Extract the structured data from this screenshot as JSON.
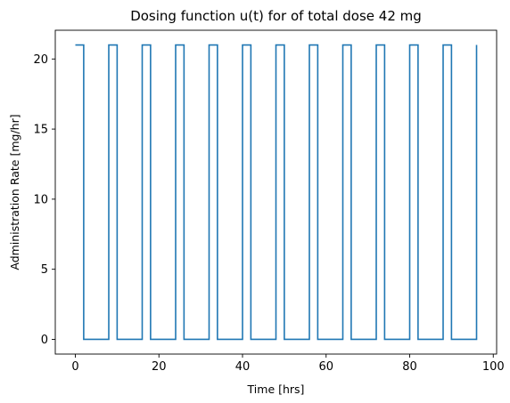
{
  "chart_data": {
    "type": "line",
    "title": "Dosing function u(t) for of total dose 42 mg",
    "xlabel": "Time [hrs]",
    "ylabel": "Administration Rate [mg/hr]",
    "xlim": [
      -4.8,
      100.8
    ],
    "ylim": [
      -1.05,
      22.05
    ],
    "xticks": [
      0,
      20,
      40,
      60,
      80,
      100
    ],
    "yticks": [
      0,
      5,
      10,
      15,
      20
    ],
    "grid": false,
    "line_color": "#1f77b4",
    "series": [
      {
        "step": "post",
        "x": [
          0,
          2,
          8,
          10,
          16,
          18,
          24,
          26,
          32,
          34,
          40,
          42,
          48,
          50,
          56,
          58,
          64,
          66,
          72,
          74,
          80,
          82,
          88,
          90,
          96
        ],
        "values": [
          21,
          0,
          21,
          0,
          21,
          0,
          21,
          0,
          21,
          0,
          21,
          0,
          21,
          0,
          21,
          0,
          21,
          0,
          21,
          0,
          21,
          0,
          21,
          0,
          21
        ]
      }
    ]
  }
}
